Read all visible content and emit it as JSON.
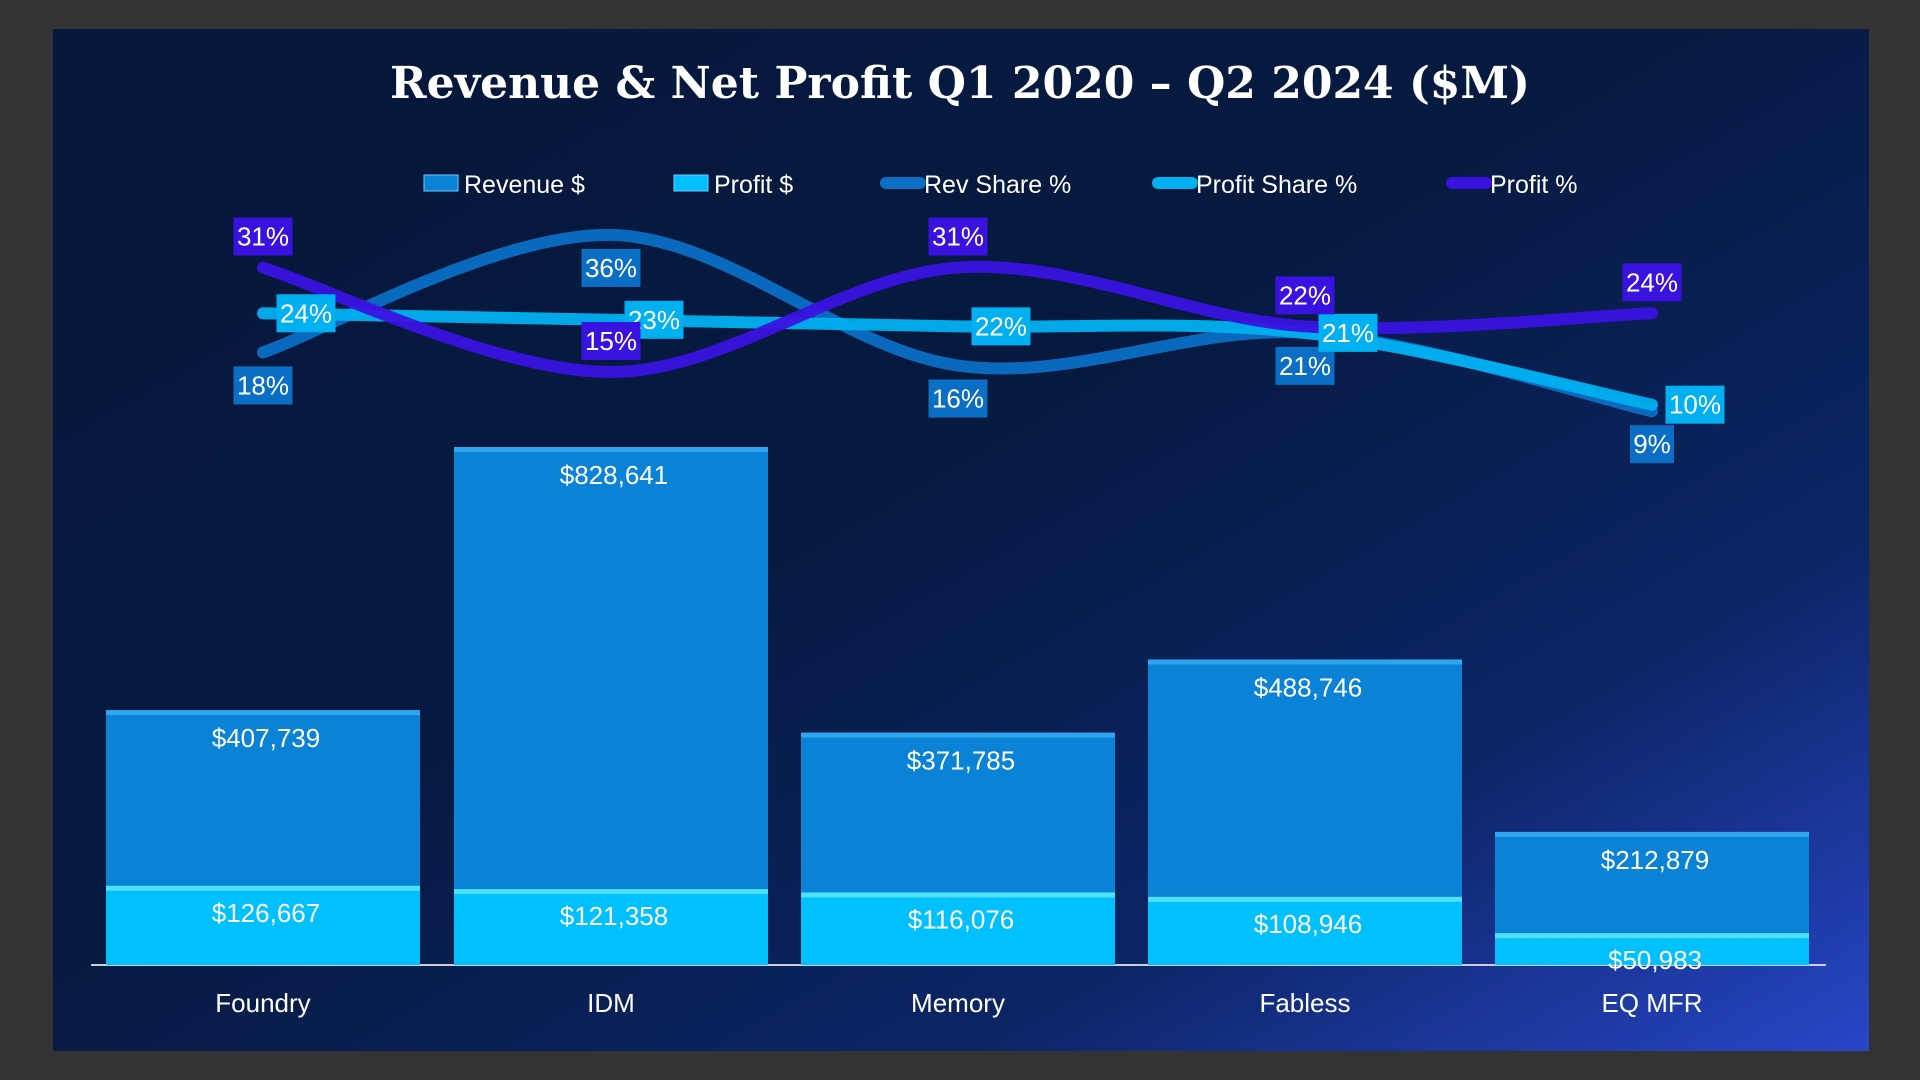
{
  "chart_data": {
    "type": "bar+line",
    "title": "Revenue & Net Profit Q1 2020 – Q2 2024 ($M)",
    "categories": [
      "Foundry",
      "IDM",
      "Memory",
      "Fabless",
      "EQ MFR"
    ],
    "bar_series": [
      {
        "name": "Revenue $",
        "values": [
          407739,
          828641,
          371785,
          488746,
          212879
        ],
        "labels": [
          "$407,739",
          "$828,641",
          "$371,785",
          "$488,746",
          "$212,879"
        ],
        "color": "#0a82d6"
      },
      {
        "name": "Profit $",
        "values": [
          126667,
          121358,
          116076,
          108946,
          50983
        ],
        "labels": [
          "$126,667",
          "$121,358",
          "$116,076",
          "$108,946",
          "$50,983"
        ],
        "color": "#00c0ff"
      }
    ],
    "line_series": [
      {
        "name": "Rev Share %",
        "values": [
          18,
          36,
          16,
          21,
          9
        ],
        "color": "#0a6fc4",
        "label_pos": "below"
      },
      {
        "name": "Profit Share %",
        "values": [
          24,
          23,
          22,
          21,
          10
        ],
        "color": "#00b0f0",
        "label_pos": "right"
      },
      {
        "name": "Profit %",
        "values": [
          31,
          15,
          31,
          22,
          24
        ],
        "color": "#3a12e0",
        "label_pos": "above"
      }
    ],
    "legend": [
      "Revenue $",
      "Profit $",
      "Rev Share %",
      "Profit Share %",
      "Profit %"
    ],
    "legend_placement": "top",
    "grid": false,
    "ylim_bars": [
      0,
      828641
    ],
    "xlabel": "",
    "ylabel": ""
  }
}
